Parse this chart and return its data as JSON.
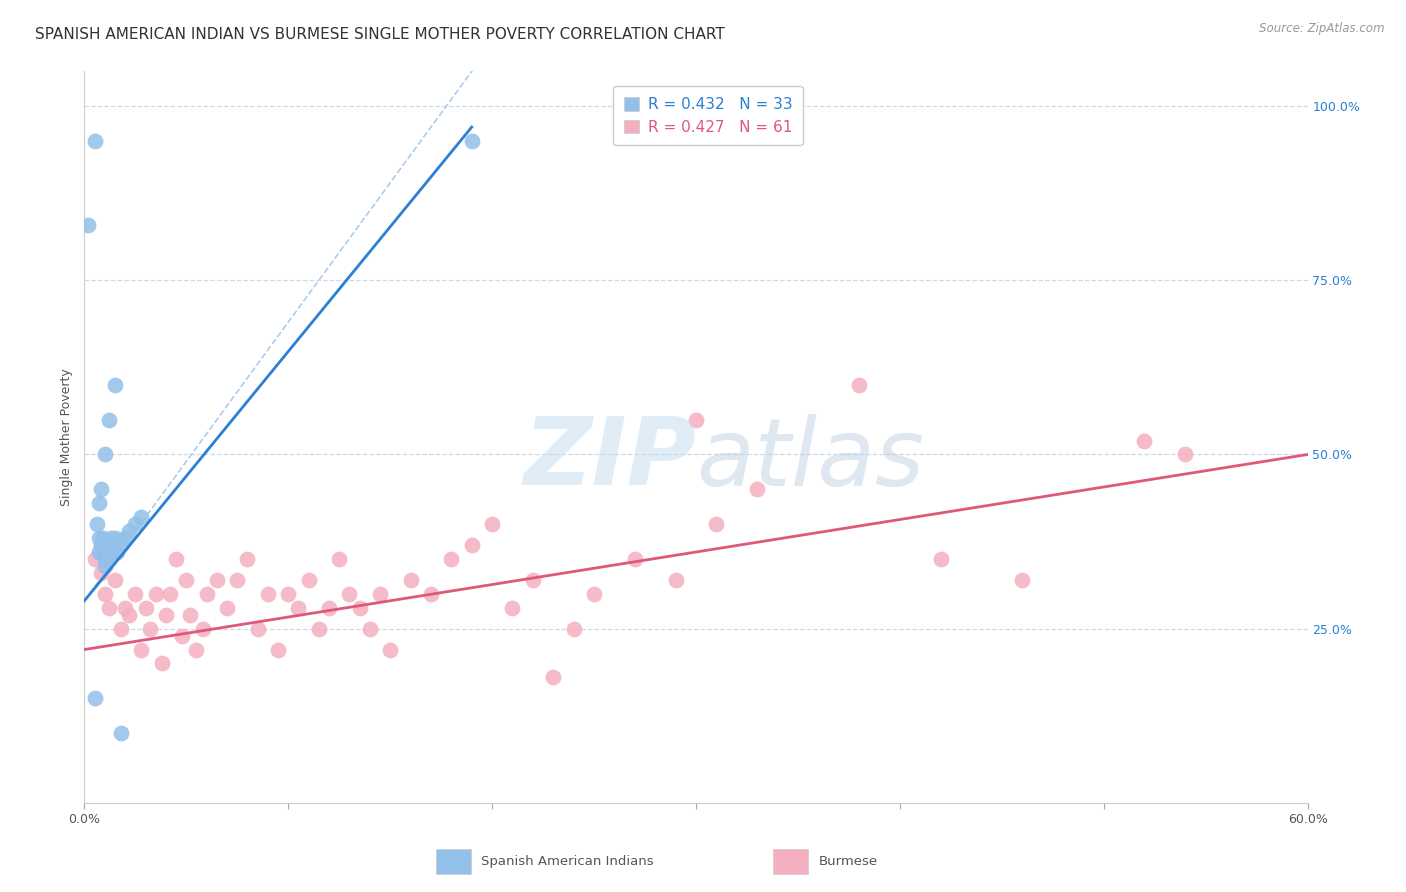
{
  "title": "SPANISH AMERICAN INDIAN VS BURMESE SINGLE MOTHER POVERTY CORRELATION CHART",
  "source": "Source: ZipAtlas.com",
  "ylabel": "Single Mother Poverty",
  "xlim": [
    0.0,
    0.6
  ],
  "ylim": [
    0.0,
    1.05
  ],
  "x_ticks": [
    0.0,
    0.1,
    0.2,
    0.3,
    0.4,
    0.5,
    0.6
  ],
  "x_tick_labels": [
    "0.0%",
    "",
    "",
    "",
    "",
    "",
    "60.0%"
  ],
  "y_ticks_right": [
    0.0,
    0.25,
    0.5,
    0.75,
    1.0
  ],
  "y_tick_labels_right": [
    "",
    "25.0%",
    "50.0%",
    "75.0%",
    "100.0%"
  ],
  "legend_blue_r": "R = 0.432",
  "legend_blue_n": "N = 33",
  "legend_pink_r": "R = 0.427",
  "legend_pink_n": "N = 61",
  "blue_color": "#92c0e8",
  "pink_color": "#f4afc0",
  "blue_line_color": "#2b7fd4",
  "pink_line_color": "#e05878",
  "background_color": "#ffffff",
  "grid_color": "#d0d8e0",
  "title_fontsize": 11,
  "axis_fontsize": 9,
  "tick_fontsize": 9,
  "blue_scatter_x": [
    0.002,
    0.005,
    0.007,
    0.007,
    0.008,
    0.009,
    0.009,
    0.01,
    0.01,
    0.01,
    0.011,
    0.011,
    0.012,
    0.012,
    0.013,
    0.013,
    0.014,
    0.015,
    0.016,
    0.018,
    0.02,
    0.022,
    0.025,
    0.028,
    0.015,
    0.012,
    0.01,
    0.008,
    0.007,
    0.006,
    0.005,
    0.018,
    0.19
  ],
  "blue_scatter_y": [
    0.83,
    0.95,
    0.36,
    0.38,
    0.37,
    0.36,
    0.38,
    0.34,
    0.37,
    0.35,
    0.36,
    0.37,
    0.35,
    0.37,
    0.36,
    0.38,
    0.37,
    0.38,
    0.36,
    0.37,
    0.38,
    0.39,
    0.4,
    0.41,
    0.6,
    0.55,
    0.5,
    0.45,
    0.43,
    0.4,
    0.15,
    0.1,
    0.95
  ],
  "pink_scatter_x": [
    0.005,
    0.008,
    0.01,
    0.012,
    0.015,
    0.018,
    0.02,
    0.022,
    0.025,
    0.028,
    0.03,
    0.032,
    0.035,
    0.038,
    0.04,
    0.042,
    0.045,
    0.048,
    0.05,
    0.052,
    0.055,
    0.058,
    0.06,
    0.065,
    0.07,
    0.075,
    0.08,
    0.085,
    0.09,
    0.095,
    0.1,
    0.105,
    0.11,
    0.115,
    0.12,
    0.125,
    0.13,
    0.135,
    0.14,
    0.145,
    0.15,
    0.16,
    0.17,
    0.18,
    0.19,
    0.2,
    0.21,
    0.22,
    0.23,
    0.24,
    0.25,
    0.27,
    0.29,
    0.31,
    0.33,
    0.38,
    0.42,
    0.46,
    0.3,
    0.52,
    0.54
  ],
  "pink_scatter_y": [
    0.35,
    0.33,
    0.3,
    0.28,
    0.32,
    0.25,
    0.28,
    0.27,
    0.3,
    0.22,
    0.28,
    0.25,
    0.3,
    0.2,
    0.27,
    0.3,
    0.35,
    0.24,
    0.32,
    0.27,
    0.22,
    0.25,
    0.3,
    0.32,
    0.28,
    0.32,
    0.35,
    0.25,
    0.3,
    0.22,
    0.3,
    0.28,
    0.32,
    0.25,
    0.28,
    0.35,
    0.3,
    0.28,
    0.25,
    0.3,
    0.22,
    0.32,
    0.3,
    0.35,
    0.37,
    0.4,
    0.28,
    0.32,
    0.18,
    0.25,
    0.3,
    0.35,
    0.32,
    0.4,
    0.45,
    0.6,
    0.35,
    0.32,
    0.55,
    0.52,
    0.5
  ]
}
